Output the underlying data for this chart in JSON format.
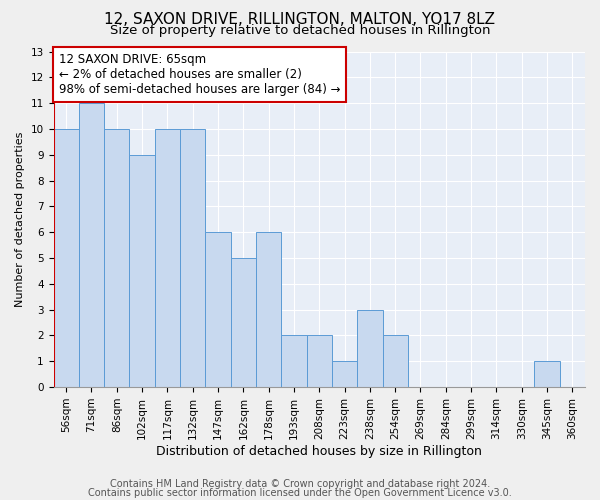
{
  "title": "12, SAXON DRIVE, RILLINGTON, MALTON, YO17 8LZ",
  "subtitle": "Size of property relative to detached houses in Rillington",
  "xlabel": "Distribution of detached houses by size in Rillington",
  "ylabel": "Number of detached properties",
  "categories": [
    "56sqm",
    "71sqm",
    "86sqm",
    "102sqm",
    "117sqm",
    "132sqm",
    "147sqm",
    "162sqm",
    "178sqm",
    "193sqm",
    "208sqm",
    "223sqm",
    "238sqm",
    "254sqm",
    "269sqm",
    "284sqm",
    "299sqm",
    "314sqm",
    "330sqm",
    "345sqm",
    "360sqm"
  ],
  "values": [
    10,
    11,
    10,
    9,
    10,
    10,
    6,
    5,
    6,
    2,
    2,
    1,
    3,
    2,
    0,
    0,
    0,
    0,
    0,
    1,
    0
  ],
  "bar_color": "#C8D9EF",
  "bar_edge_color": "#5B9BD5",
  "annotation_box_color": "white",
  "annotation_box_edge": "#CC0000",
  "annotation_title": "12 SAXON DRIVE: 65sqm",
  "annotation_line1": "← 2% of detached houses are smaller (2)",
  "annotation_line2": "98% of semi-detached houses are larger (84) →",
  "ref_line_color": "#CC0000",
  "ylim_max": 13,
  "yticks": [
    0,
    1,
    2,
    3,
    4,
    5,
    6,
    7,
    8,
    9,
    10,
    11,
    12,
    13
  ],
  "footer1": "Contains HM Land Registry data © Crown copyright and database right 2024.",
  "footer2": "Contains public sector information licensed under the Open Government Licence v3.0.",
  "bg_color": "#EFEFEF",
  "plot_bg_color": "#E8EEF7",
  "title_fontsize": 11,
  "subtitle_fontsize": 9.5,
  "xlabel_fontsize": 9,
  "ylabel_fontsize": 8,
  "tick_fontsize": 7.5,
  "footer_fontsize": 7,
  "annotation_fontsize": 8.5
}
